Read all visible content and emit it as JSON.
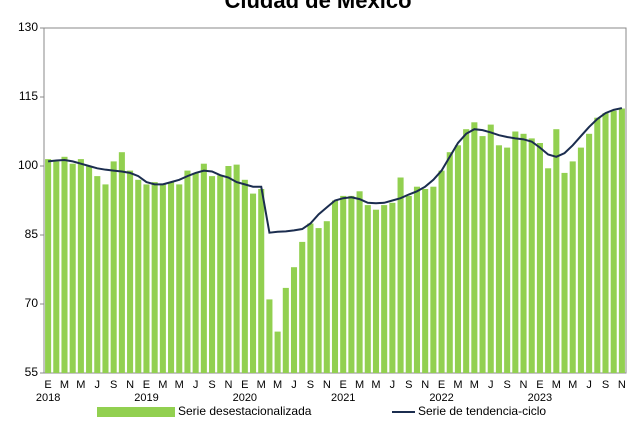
{
  "chart_data": {
    "type": "bar",
    "title": "Ciudad de México",
    "categories": [
      "E",
      null,
      "M",
      null,
      "M",
      null,
      "J",
      null,
      "S",
      null,
      "N",
      null,
      "E",
      null,
      "M",
      null,
      "M",
      null,
      "J",
      null,
      "S",
      null,
      "N",
      null,
      "E",
      null,
      "M",
      null,
      "M",
      null,
      "J",
      null,
      "S",
      null,
      "N",
      null,
      "E",
      null,
      "M",
      null,
      "M",
      null,
      "J",
      null,
      "S",
      null,
      "N",
      null,
      "E",
      null,
      "M",
      null,
      "M",
      null,
      "J",
      null,
      "S",
      null,
      "N",
      null,
      "E",
      null,
      "M",
      null,
      "M",
      null,
      "J",
      null,
      "S",
      null,
      "N"
    ],
    "category_years": [
      "2018",
      null,
      null,
      null,
      null,
      null,
      null,
      null,
      null,
      null,
      null,
      null,
      "2019",
      null,
      null,
      null,
      null,
      null,
      null,
      null,
      null,
      null,
      null,
      null,
      "2020",
      null,
      null,
      null,
      null,
      null,
      null,
      null,
      null,
      null,
      null,
      null,
      "2021",
      null,
      null,
      null,
      null,
      null,
      null,
      null,
      null,
      null,
      null,
      null,
      "2022",
      null,
      null,
      null,
      null,
      null,
      null,
      null,
      null,
      null,
      null,
      null,
      "2023",
      null,
      null,
      null,
      null,
      null,
      null,
      null,
      null,
      null,
      null
    ],
    "series": [
      {
        "name": "Serie desestacionalizada",
        "type": "bar",
        "color": "#92d050",
        "values": [
          101.5,
          101,
          102,
          100.5,
          101.5,
          100,
          97.8,
          96,
          101,
          103,
          99,
          97,
          96,
          96.5,
          96,
          96.5,
          96,
          99,
          98.5,
          100.5,
          97.8,
          98,
          100,
          100.3,
          97,
          94,
          95,
          71,
          64,
          73.5,
          78,
          83.5,
          87.5,
          86.5,
          88,
          92.5,
          93.5,
          93.5,
          94.5,
          91.5,
          90.5,
          91.5,
          92,
          97.5,
          93.5,
          95.5,
          95,
          95.5,
          99,
          103,
          104.5,
          108,
          109.5,
          106.5,
          109,
          104.5,
          104,
          107.5,
          107,
          106,
          105,
          99.5,
          108,
          98.5,
          101,
          104,
          107,
          110.5,
          111.5,
          112,
          112.5
        ]
      },
      {
        "name": "Serie de tendencia-ciclo",
        "type": "line",
        "color": "#1b2d4f",
        "values": [
          101,
          101.2,
          101.3,
          101,
          100.5,
          100,
          99.5,
          99.2,
          99,
          98.8,
          98.5,
          97.8,
          96.5,
          96,
          96,
          96.5,
          97,
          97.8,
          98.5,
          99,
          98.8,
          98,
          97.5,
          96.5,
          96,
          95.5,
          95.5,
          85.5,
          85.7,
          85.8,
          86,
          86.3,
          87.5,
          89.5,
          91,
          92.5,
          93,
          93.2,
          92.8,
          92,
          91.9,
          92,
          92.5,
          93,
          93.8,
          94.5,
          95.5,
          97,
          99,
          102,
          105,
          107,
          108,
          107.8,
          107.3,
          106.7,
          106.3,
          106,
          105.8,
          105.3,
          104,
          102.5,
          102,
          102.8,
          104.5,
          106.5,
          108.5,
          110.2,
          111.5,
          112.2,
          112.6
        ]
      }
    ],
    "ylim": [
      55,
      130
    ],
    "yticks": [
      55,
      70,
      85,
      100,
      115,
      130
    ],
    "grid": false
  }
}
